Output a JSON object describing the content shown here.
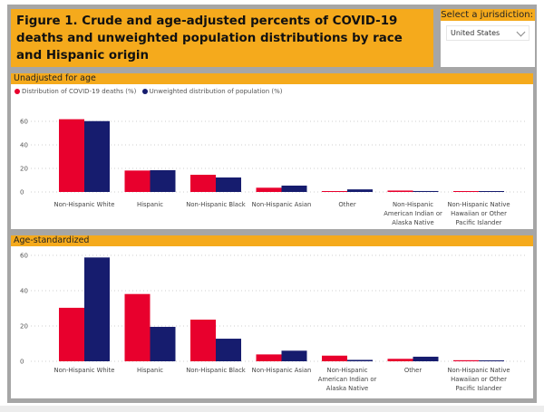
{
  "header": {
    "title": "Figure 1. Crude and age-adjusted percents of COVID-19 deaths and unweighted population distributions by race and Hispanic origin"
  },
  "jurisdiction": {
    "label": "Select a jurisdiction:",
    "selected": "United States"
  },
  "colors": {
    "accent": "#f5aa1c",
    "deaths": "#e8002d",
    "population": "#161c6e"
  },
  "chart_data": [
    {
      "type": "bar",
      "title": "Unadjusted for age",
      "xlabel": "",
      "ylabel": "",
      "ylim": [
        0,
        65
      ],
      "yticks": [
        0,
        20,
        40,
        60
      ],
      "grid": true,
      "legend_position": "top-left",
      "categories": [
        [
          "Non-Hispanic White"
        ],
        [
          "Hispanic"
        ],
        [
          "Non-Hispanic Black"
        ],
        [
          "Non-Hispanic Asian"
        ],
        [
          "Other"
        ],
        [
          "Non-Hispanic",
          "American Indian or",
          "Alaska Native"
        ],
        [
          "Non-Hispanic Native",
          "Hawaiian or Other",
          "Pacific Islander"
        ]
      ],
      "series": [
        {
          "name": "Distribution of COVID-19 deaths (%)",
          "values": [
            61.8,
            18.2,
            14.6,
            3.6,
            0.6,
            1.2,
            0.2
          ]
        },
        {
          "name": "Unweighted distribution of population (%)",
          "values": [
            60.2,
            18.5,
            12.3,
            5.4,
            2.2,
            0.8,
            0.3
          ]
        }
      ]
    },
    {
      "type": "bar",
      "title": "Age-standardized",
      "xlabel": "",
      "ylabel": "",
      "ylim": [
        0,
        60
      ],
      "yticks": [
        0,
        20,
        40,
        60
      ],
      "grid": true,
      "categories": [
        [
          "Non-Hispanic White"
        ],
        [
          "Hispanic"
        ],
        [
          "Non-Hispanic Black"
        ],
        [
          "Non-Hispanic Asian"
        ],
        [
          "Non-Hispanic",
          "American Indian or",
          "Alaska Native"
        ],
        [
          "Other"
        ],
        [
          "Non-Hispanic Native",
          "Hawaiian or Other",
          "Pacific Islander"
        ]
      ],
      "series": [
        {
          "name": "Distribution of COVID-19 deaths (%)",
          "values": [
            30.3,
            38.1,
            23.6,
            3.9,
            3.2,
            1.4,
            0.6
          ]
        },
        {
          "name": "Unweighted distribution of population (%)",
          "values": [
            58.8,
            19.5,
            12.8,
            6.0,
            0.8,
            2.6,
            0.3
          ]
        }
      ]
    }
  ]
}
